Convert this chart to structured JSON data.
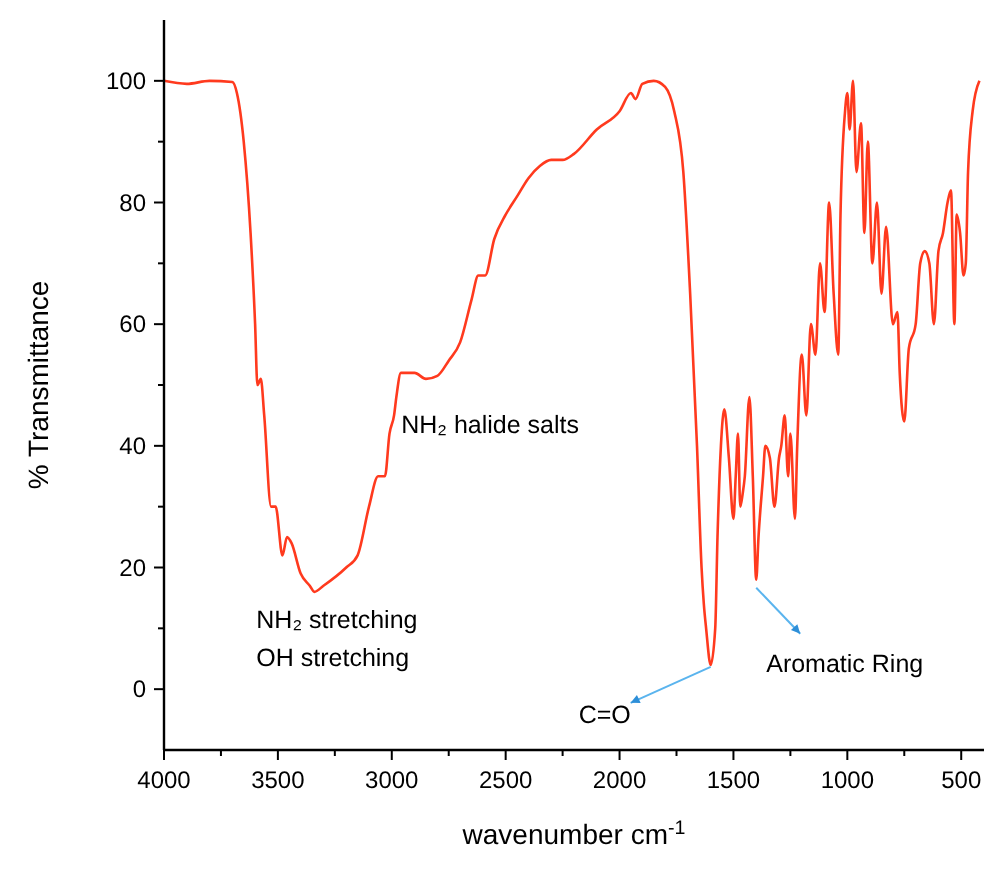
{
  "chart_data": {
    "type": "line",
    "xlabel": "wavenumber cm$^{-1}$",
    "ylabel": "% Transmittance",
    "xlim": [
      4000,
      400
    ],
    "ylim": [
      -10,
      110
    ],
    "xticks": [
      4000,
      {
        "value": 3750,
        "label": null
      },
      3500,
      {
        "value": 3250,
        "label": null
      },
      3000,
      {
        "value": 2750,
        "label": null
      },
      2500,
      {
        "value": 2250,
        "label": null
      },
      2000,
      {
        "value": 1750,
        "label": null
      },
      1500,
      {
        "value": 1250,
        "label": null
      },
      1000,
      {
        "value": 750,
        "label": null
      },
      500
    ],
    "yticks": [
      0,
      {
        "value": 10,
        "label": null
      },
      20,
      {
        "value": 30,
        "label": null
      },
      40,
      {
        "value": 50,
        "label": null
      },
      60,
      {
        "value": 70,
        "label": null
      },
      80,
      {
        "value": 90,
        "label": null
      },
      100
    ],
    "grid": false,
    "marker": "none",
    "line_style": "solid",
    "series": [
      {
        "color": "#ff3a1e",
        "x": [
          4000,
          3900,
          3800,
          3700,
          3680,
          3650,
          3620,
          3600,
          3590,
          3575,
          3560,
          3530,
          3510,
          3480,
          3460,
          3440,
          3400,
          3360,
          3340,
          3300,
          3200,
          3150,
          3100,
          3060,
          3030,
          3010,
          2990,
          2980,
          2960,
          2900,
          2850,
          2800,
          2750,
          2700,
          2650,
          2620,
          2590,
          2550,
          2500,
          2450,
          2400,
          2350,
          2300,
          2250,
          2200,
          2100,
          2000,
          1950,
          1930,
          1900,
          1850,
          1800,
          1760,
          1720,
          1690,
          1660,
          1640,
          1630,
          1620,
          1600,
          1580,
          1570,
          1555,
          1540,
          1520,
          1500,
          1490,
          1480,
          1470,
          1460,
          1450,
          1430,
          1415,
          1400,
          1390,
          1370,
          1360,
          1340,
          1320,
          1300,
          1290,
          1275,
          1260,
          1250,
          1230,
          1220,
          1200,
          1180,
          1160,
          1140,
          1120,
          1100,
          1080,
          1060,
          1040,
          1030,
          1010,
          1000,
          990,
          975,
          960,
          940,
          925,
          910,
          890,
          870,
          850,
          830,
          800,
          780,
          770,
          750,
          730,
          700,
          680,
          660,
          640,
          620,
          600,
          580,
          560,
          545,
          530,
          520,
          505,
          490,
          480,
          470,
          450,
          420
        ],
        "values": [
          100,
          99.5,
          100,
          99.8,
          98,
          90,
          75,
          60,
          50,
          51,
          45,
          30,
          30,
          22,
          25,
          24,
          19,
          17,
          16,
          17,
          20,
          22,
          30,
          35,
          35,
          42,
          45,
          48,
          52,
          52,
          51,
          51.5,
          54,
          57,
          64,
          68,
          68,
          74,
          78,
          81,
          84,
          86,
          87,
          87,
          88,
          92,
          95,
          98,
          97,
          99.5,
          100,
          99,
          95,
          85,
          65,
          40,
          20,
          14,
          10,
          4,
          10,
          25,
          40,
          46,
          38,
          28,
          35,
          42,
          30,
          32,
          35,
          48,
          35,
          18,
          25,
          35,
          40,
          38,
          30,
          38,
          40,
          45,
          35,
          42,
          28,
          40,
          55,
          45,
          60,
          55,
          70,
          62,
          80,
          65,
          55,
          78,
          95,
          98,
          92,
          100,
          85,
          93,
          75,
          90,
          70,
          80,
          65,
          76,
          60,
          62,
          52,
          44,
          56,
          60,
          70,
          72,
          70,
          60,
          72,
          75,
          80,
          82,
          60,
          78,
          75,
          68,
          70,
          85,
          95,
          100
        ]
      }
    ],
    "annotations": [
      {
        "text": "NH₂ halide salts",
        "x": 2950,
        "y": 52
      },
      {
        "text": "NH₂ stretching",
        "x": 3340,
        "y": 16
      },
      {
        "text": "OH stretching",
        "x": 3340,
        "y": 16
      },
      {
        "text": "C=O",
        "x": 1600,
        "y": 4
      },
      {
        "text": "Aromatic Ring",
        "x": 1400,
        "y": 17
      }
    ]
  }
}
